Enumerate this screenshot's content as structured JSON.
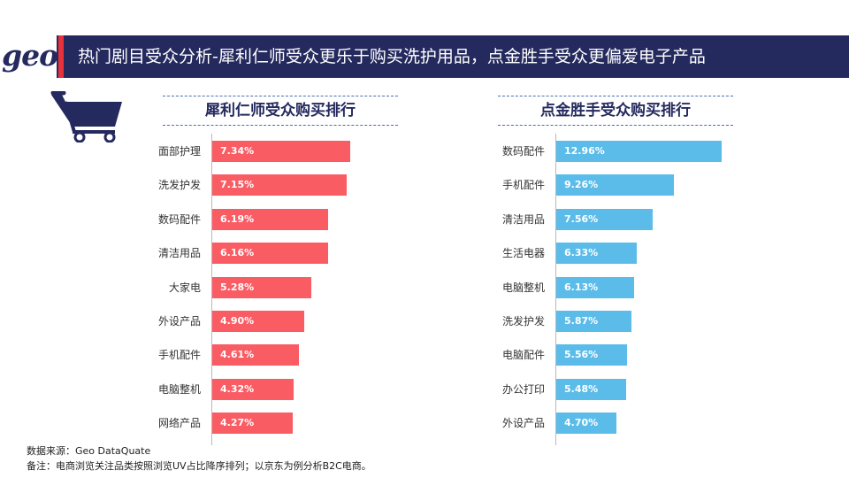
{
  "header": {
    "logo": "geo",
    "title": "热门剧目受众分析-犀利仁师受众更乐于购买洗护用品，点金胜手受众更偏爱电子产品"
  },
  "icons": {
    "cart": "shopping-cart-icon"
  },
  "colors": {
    "header_bg": "#252a5e",
    "accent_red": "#e8313b",
    "left_bar": "#fa5c64",
    "right_bar": "#5bbcea"
  },
  "chart_data": [
    {
      "type": "bar",
      "orientation": "horizontal",
      "title": "犀利仁师受众购买排行",
      "categories": [
        "面部护理",
        "洗发护发",
        "数码配件",
        "清洁用品",
        "大家电",
        "外设产品",
        "手机配件",
        "电脑整机",
        "网络产品"
      ],
      "values": [
        7.34,
        7.15,
        6.19,
        6.16,
        5.28,
        4.9,
        4.61,
        4.32,
        4.27
      ],
      "labels": [
        "7.34%",
        "7.15%",
        "6.19%",
        "6.16%",
        "5.28%",
        "4.90%",
        "4.61%",
        "4.32%",
        "4.27%"
      ],
      "unit": "%",
      "color": "#fa5c64"
    },
    {
      "type": "bar",
      "orientation": "horizontal",
      "title": "点金胜手受众购买排行",
      "categories": [
        "数码配件",
        "手机配件",
        "清洁用品",
        "生活电器",
        "电脑整机",
        "洗发护发",
        "电脑配件",
        "办公打印",
        "外设产品"
      ],
      "values": [
        12.96,
        9.26,
        7.56,
        6.33,
        6.13,
        5.87,
        5.56,
        5.48,
        4.7
      ],
      "labels": [
        "12.96%",
        "9.26%",
        "7.56%",
        "6.33%",
        "6.13%",
        "5.87%",
        "5.56%",
        "5.48%",
        "4.70%"
      ],
      "unit": "%",
      "color": "#5bbcea"
    }
  ],
  "footnotes": {
    "source": "数据来源：Geo DataQuate",
    "note": "备注：电商浏览关注品类按照浏览UV占比降序排列；以京东为例分析B2C电商。"
  }
}
